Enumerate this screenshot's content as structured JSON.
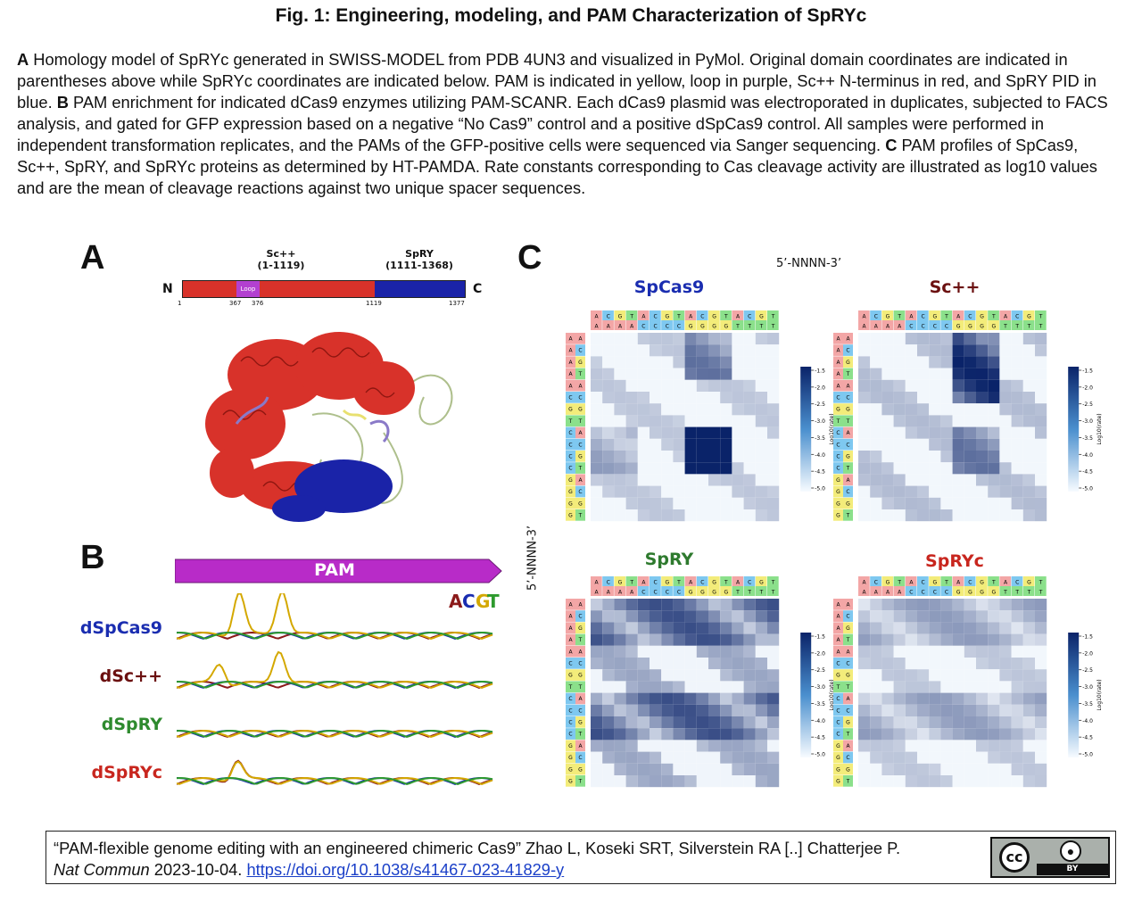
{
  "figure": {
    "title": "Fig. 1: Engineering, modeling, and PAM Characterization of SpRYc",
    "caption": [
      {
        "bold": "A",
        "text": " Homology model of SpRYc generated in SWISS-MODEL from PDB 4UN3 and visualized in PyMol. Original domain coordinates are indicated in parentheses above while SpRYc coordinates are indicated below. PAM is indicated in yellow, loop in purple, Sc++ N-terminus in red, and SpRY PID in blue. "
      },
      {
        "bold": "B",
        "text": " PAM enrichment for indicated dCas9 enzymes utilizing PAM-SCANR. Each dCas9 plasmid was electroporated in duplicates, subjected to FACS analysis, and gated for GFP expression based on a negative “No Cas9” control and a positive dSpCas9 control. All samples were performed in independent transformation replicates, and the PAMs of the GFP-positive cells were sequenced via Sanger sequencing. "
      },
      {
        "bold": "C",
        "text": " PAM profiles of SpCas9, Sc++, SpRY, and SpRYc proteins as determined by HT-PAMDA. Rate constants corresponding to Cas cleavage activity are illustrated as log10 values and are the mean of cleavage reactions against two unique spacer sequences."
      }
    ]
  },
  "panelA": {
    "letter": "A",
    "seg1": {
      "name": "Sc++",
      "range": "(1-1119)"
    },
    "seg2": {
      "name": "SpRY",
      "range": "(1111-1368)"
    },
    "loop_label": "Loop",
    "n_label": "N",
    "c_label": "C",
    "coords": [
      "1",
      "367",
      "376",
      "1119",
      "1377"
    ],
    "colors": {
      "sc": "#d8322a",
      "spry": "#1a23a8",
      "loop": "#b340d0"
    }
  },
  "panelB": {
    "letter": "B",
    "pam_label": "PAM",
    "acgt": [
      "A",
      "C",
      "G",
      "T"
    ],
    "acgt_colors": [
      "#8b1a1a",
      "#1a2db0",
      "#d4a800",
      "#2e9a2e"
    ],
    "traces": [
      {
        "label": "dSpCas9",
        "color": "#1a2db0"
      },
      {
        "label": "dSc++",
        "color": "#6b1010"
      },
      {
        "label": "dSpRY",
        "color": "#2e8a2e"
      },
      {
        "label": "dSpRYc",
        "color": "#c8261e"
      }
    ]
  },
  "panelC": {
    "letter": "C",
    "top_axis": "5’-NNNN-3’",
    "side_axis": "5’-NNNN-3’",
    "colorbar_ticks": [
      "-1.5",
      "-2.0",
      "-2.5",
      "-3.0",
      "-3.5",
      "-4.0",
      "-4.5",
      "-5.0"
    ],
    "colorbar_label": "Log10(rate)",
    "col_top": [
      "A",
      "C",
      "G",
      "T",
      "A",
      "C",
      "G",
      "T",
      "A",
      "C",
      "G",
      "T",
      "A",
      "C",
      "G",
      "T"
    ],
    "col_bottom": [
      "A",
      "A",
      "A",
      "A",
      "C",
      "C",
      "C",
      "C",
      "G",
      "G",
      "G",
      "G",
      "T",
      "T",
      "T",
      "T"
    ],
    "row_left": [
      "A",
      "A",
      "A",
      "A",
      "A",
      "C",
      "G",
      "T",
      "C",
      "C",
      "C",
      "C",
      "G",
      "G",
      "G",
      "G",
      "T",
      "T",
      "T",
      "T"
    ],
    "maps": [
      {
        "title": "SpCas9",
        "color": "#1a2db0"
      },
      {
        "title": "Sc++",
        "color": "#6b1010"
      },
      {
        "title": "SpRY",
        "color": "#2e7a2e"
      },
      {
        "title": "SpRYc",
        "color": "#c8261e"
      }
    ]
  },
  "citation": {
    "line1": "“PAM-flexible genome editing with an engineered chimeric Cas9” Zhao L, Koseki SRT, Silverstein RA [..] Chatterjee P.",
    "journal": "Nat Commun",
    "date": " 2023-10-04. ",
    "link": "https://doi.org/10.1038/s41467-023-41829-y",
    "badge_cc": "cc",
    "badge_by": "BY"
  }
}
